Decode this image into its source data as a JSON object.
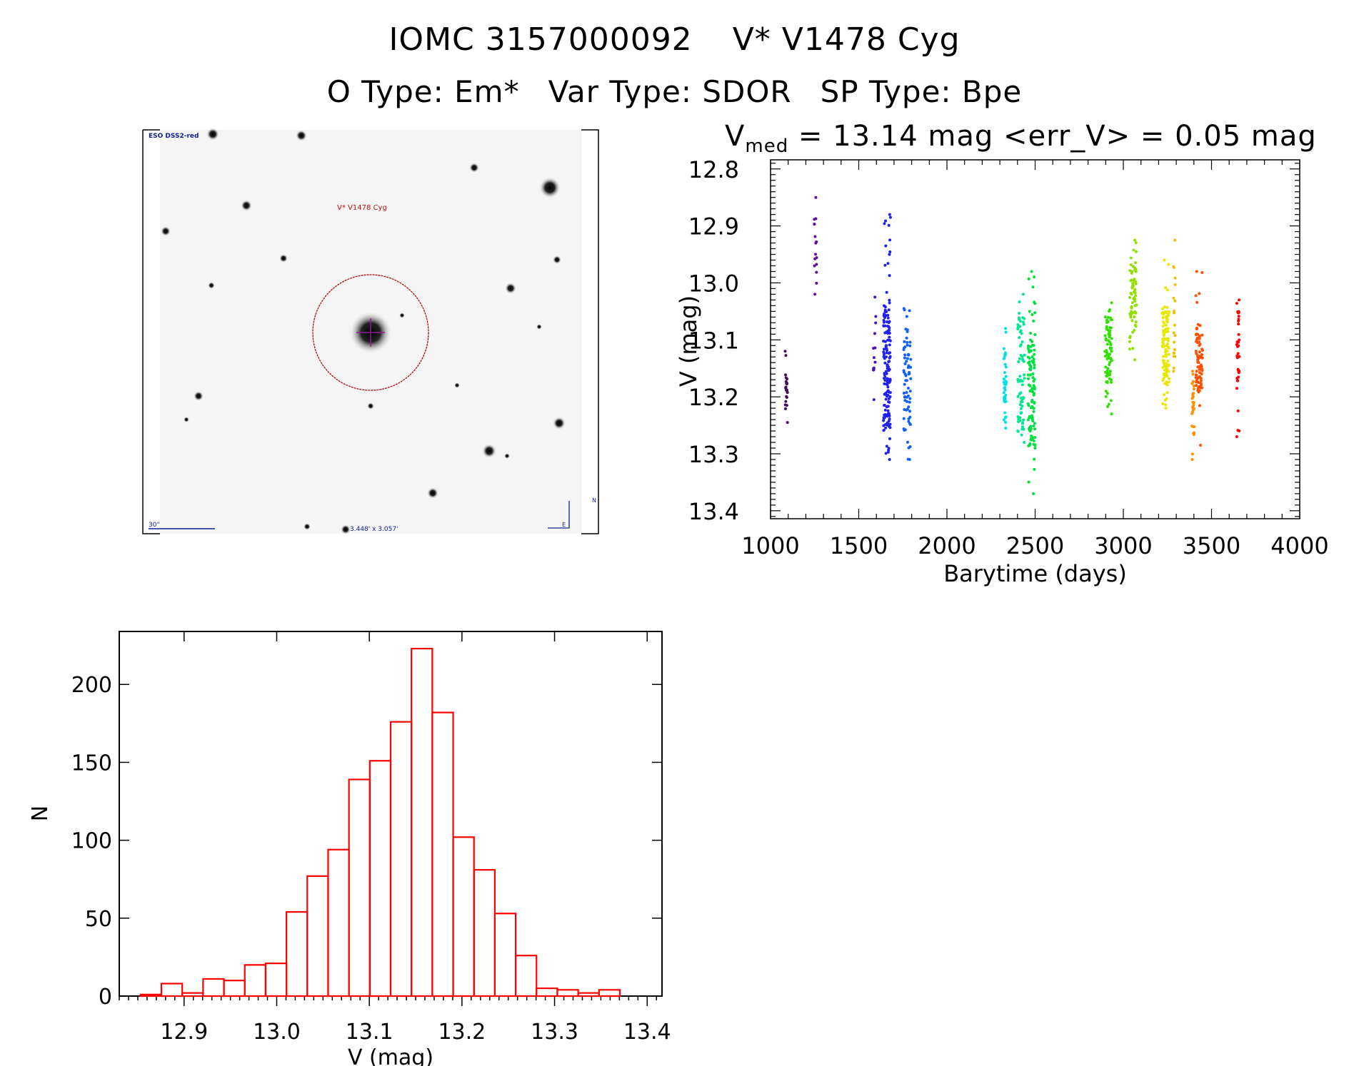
{
  "header": {
    "id": "IOMC 3157000092",
    "name": "V* V1478 Cyg",
    "otype": "O Type: Em*",
    "vartype": "Var Type: SDOR",
    "sptype": "SP Type: Bpe"
  },
  "stats": {
    "vmed_sym": "V",
    "vmed_sub": "med",
    "text": " = 13.14 mag <err_V> = 0.05 mag"
  },
  "image": {
    "survey": "ESO DSS2-red",
    "target": "V* V1478 Cyg",
    "scale": "30\"",
    "fov": "3.448' x 3.057'",
    "north": "N",
    "east": "E"
  },
  "chart_data": [
    {
      "type": "scatter",
      "title": "",
      "xlabel": "Barytime (days)",
      "ylabel": "V (mag)",
      "xlim": [
        1000,
        4000
      ],
      "ylim": [
        13.414,
        12.784
      ],
      "xticks": [
        "1000",
        "1500",
        "2000",
        "2500",
        "3000",
        "3500",
        "4000"
      ],
      "yticks": [
        "12.8",
        "12.9",
        "13.0",
        "13.1",
        "13.2",
        "13.3",
        "13.4"
      ],
      "clusters": [
        {
          "x": 1090,
          "ymin": 13.12,
          "ymax": 13.245,
          "core": [
            13.155,
            13.22
          ],
          "n": 22,
          "color": "#4a0a5a"
        },
        {
          "x": 1255,
          "ymin": 12.85,
          "ymax": 13.02,
          "core": [
            12.88,
            12.99
          ],
          "n": 16,
          "color": "#6010a0"
        },
        {
          "x": 1590,
          "ymin": 13.025,
          "ymax": 13.205,
          "core": [
            13.07,
            13.16
          ],
          "n": 14,
          "color": "#4a10c8"
        },
        {
          "x": 1660,
          "ymin": 12.88,
          "ymax": 13.31,
          "core": [
            13.03,
            13.26
          ],
          "n": 160,
          "color": "#2020f0"
        },
        {
          "x": 1775,
          "ymin": 13.045,
          "ymax": 13.31,
          "core": [
            13.08,
            13.27
          ],
          "n": 70,
          "color": "#1060ff"
        },
        {
          "x": 2330,
          "ymin": 13.08,
          "ymax": 13.255,
          "core": [
            13.12,
            13.25
          ],
          "n": 40,
          "color": "#00e0e0"
        },
        {
          "x": 2420,
          "ymin": 13.02,
          "ymax": 13.28,
          "core": [
            13.06,
            13.27
          ],
          "n": 70,
          "color": "#00e890"
        },
        {
          "x": 2480,
          "ymin": 12.98,
          "ymax": 13.37,
          "core": [
            13.1,
            13.29
          ],
          "n": 110,
          "color": "#00e040"
        },
        {
          "x": 2915,
          "ymin": 13.035,
          "ymax": 13.23,
          "core": [
            13.06,
            13.18
          ],
          "n": 80,
          "color": "#30e000"
        },
        {
          "x": 3055,
          "ymin": 12.925,
          "ymax": 13.135,
          "core": [
            12.96,
            13.07
          ],
          "n": 70,
          "color": "#90e000"
        },
        {
          "x": 3240,
          "ymin": 12.96,
          "ymax": 13.22,
          "core": [
            13.04,
            13.18
          ],
          "n": 110,
          "color": "#e8e800"
        },
        {
          "x": 3290,
          "ymin": 12.925,
          "ymax": 13.155,
          "core": [
            12.99,
            13.15
          ],
          "n": 20,
          "color": "#f0c000"
        },
        {
          "x": 3395,
          "ymin": 13.155,
          "ymax": 13.31,
          "core": [
            13.17,
            13.23
          ],
          "n": 30,
          "color": "#ff9000"
        },
        {
          "x": 3430,
          "ymin": 12.98,
          "ymax": 13.285,
          "core": [
            13.09,
            13.19
          ],
          "n": 80,
          "color": "#ff5000"
        },
        {
          "x": 3650,
          "ymin": 13.03,
          "ymax": 13.27,
          "core": [
            13.05,
            13.18
          ],
          "n": 35,
          "color": "#ff0000"
        }
      ]
    },
    {
      "type": "bar",
      "title": "",
      "xlabel": "V (mag)",
      "ylabel": "N",
      "xlim": [
        12.83,
        13.416
      ],
      "ylim": [
        0,
        234
      ],
      "bin_start": 12.853,
      "bin_width": 0.0225,
      "values": [
        1,
        8,
        2,
        11,
        10,
        20,
        21,
        54,
        77,
        94,
        139,
        151,
        176,
        223,
        182,
        102,
        81,
        53,
        26,
        5,
        4,
        2,
        4
      ],
      "color": "#ff0000",
      "xticks": [
        "12.9",
        "13.0",
        "13.1",
        "13.2",
        "13.3",
        "13.4"
      ],
      "yticks": [
        "0",
        "50",
        "100",
        "150",
        "200"
      ]
    }
  ]
}
